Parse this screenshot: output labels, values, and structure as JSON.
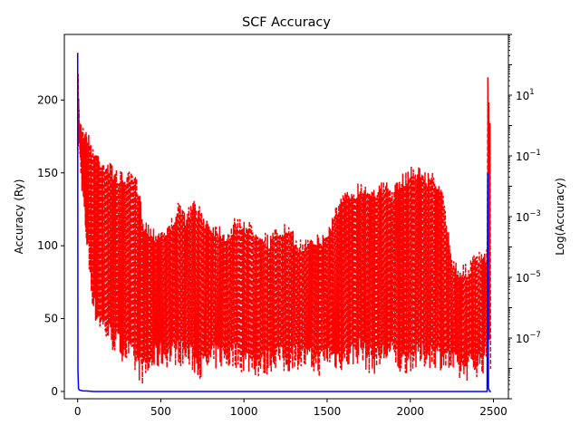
{
  "chart_data": {
    "type": "line",
    "title": "SCF Accuracy",
    "xlabel": "",
    "ylabel": "Accuracy (Ry)",
    "ylabel_right": "Log(Accuracy)",
    "xlim": [
      -80,
      2590
    ],
    "ylim": [
      -5,
      245
    ],
    "ylim_right_log10": [
      -9,
      3
    ],
    "x_ticks": [
      0,
      500,
      1000,
      1500,
      2000,
      2500
    ],
    "x_tick_labels": [
      "0",
      "500",
      "1000",
      "1500",
      "2000",
      "2500"
    ],
    "y_ticks": [
      0,
      50,
      100,
      150,
      200
    ],
    "y_tick_labels": [
      "0",
      "50",
      "100",
      "150",
      "200"
    ],
    "y_right_ticks_log10": [
      -7,
      -5,
      -3,
      -1,
      1
    ],
    "y_right_tick_labels": [
      {
        "base": "10",
        "exp": "−7"
      },
      {
        "base": "10",
        "exp": "−5"
      },
      {
        "base": "10",
        "exp": "−3"
      },
      {
        "base": "10",
        "exp": "−1"
      },
      {
        "base": "10",
        "exp": "1"
      }
    ],
    "grid": false,
    "series": [
      {
        "axis": "left",
        "color": "#0000ff",
        "style": "solid",
        "points": [
          [
            0,
            232
          ],
          [
            2,
            15
          ],
          [
            5,
            2
          ],
          [
            10,
            1
          ],
          [
            30,
            0.5
          ],
          [
            60,
            0.3
          ],
          [
            100,
            0
          ],
          [
            2450,
            0
          ],
          [
            2462,
            0
          ],
          [
            2466,
            150
          ],
          [
            2470,
            2
          ],
          [
            2478,
            0
          ],
          [
            2485,
            0
          ]
        ]
      },
      {
        "axis": "right",
        "color": "#ff0000",
        "style": "dashed",
        "envelope_log10": [
          [
            0,
            2.4,
            -0.6
          ],
          [
            10,
            0.5,
            -1.2
          ],
          [
            30,
            0.0,
            -2.5
          ],
          [
            60,
            -0.2,
            -4.5
          ],
          [
            100,
            -0.7,
            -6.5
          ],
          [
            150,
            -1.0,
            -7.0
          ],
          [
            200,
            -1.2,
            -7.4
          ],
          [
            250,
            -1.5,
            -7.7
          ],
          [
            300,
            -1.5,
            -7.9
          ],
          [
            350,
            -1.6,
            -8.3
          ],
          [
            400,
            -3.0,
            -8.6
          ],
          [
            450,
            -3.3,
            -8.2
          ],
          [
            500,
            -3.3,
            -8.0
          ],
          [
            550,
            -3.2,
            -8.0
          ],
          [
            600,
            -2.5,
            -7.9
          ],
          [
            650,
            -2.8,
            -8.0
          ],
          [
            700,
            -2.4,
            -8.2
          ],
          [
            750,
            -2.8,
            -8.4
          ],
          [
            800,
            -3.1,
            -8.2
          ],
          [
            850,
            -3.2,
            -8.0
          ],
          [
            900,
            -3.4,
            -8.1
          ],
          [
            950,
            -3.0,
            -8.0
          ],
          [
            1000,
            -3.0,
            -8.2
          ],
          [
            1050,
            -3.2,
            -8.2
          ],
          [
            1100,
            -3.3,
            -8.4
          ],
          [
            1150,
            -3.6,
            -8.2
          ],
          [
            1200,
            -3.3,
            -8.0
          ],
          [
            1250,
            -3.2,
            -8.3
          ],
          [
            1300,
            -3.5,
            -8.0
          ],
          [
            1350,
            -3.8,
            -8.1
          ],
          [
            1400,
            -3.4,
            -8.2
          ],
          [
            1450,
            -3.6,
            -8.3
          ],
          [
            1500,
            -3.4,
            -8.0
          ],
          [
            1550,
            -2.6,
            -8.1
          ],
          [
            1600,
            -2.2,
            -8.1
          ],
          [
            1650,
            -2.0,
            -8.0
          ],
          [
            1700,
            -1.8,
            -7.8
          ],
          [
            1750,
            -1.9,
            -8.2
          ],
          [
            1800,
            -1.9,
            -8.2
          ],
          [
            1850,
            -1.8,
            -7.9
          ],
          [
            1900,
            -2.0,
            -8.0
          ],
          [
            1950,
            -1.6,
            -8.3
          ],
          [
            2000,
            -1.3,
            -8.1
          ],
          [
            2050,
            -1.3,
            -8.1
          ],
          [
            2100,
            -1.5,
            -8.0
          ],
          [
            2150,
            -1.5,
            -8.0
          ],
          [
            2200,
            -2.3,
            -8.1
          ],
          [
            2250,
            -4.2,
            -8.3
          ],
          [
            2300,
            -4.6,
            -8.5
          ],
          [
            2350,
            -4.5,
            -8.4
          ],
          [
            2400,
            -4.1,
            -8.3
          ],
          [
            2440,
            -4.2,
            -8.2
          ],
          [
            2460,
            -4.0,
            -8.1
          ],
          [
            2466,
            2.0,
            -6.0
          ],
          [
            2474,
            0.8,
            -7.0
          ],
          [
            2480,
            0.2,
            -8.0
          ],
          [
            2485,
            0.0,
            -8.4
          ]
        ]
      }
    ]
  }
}
